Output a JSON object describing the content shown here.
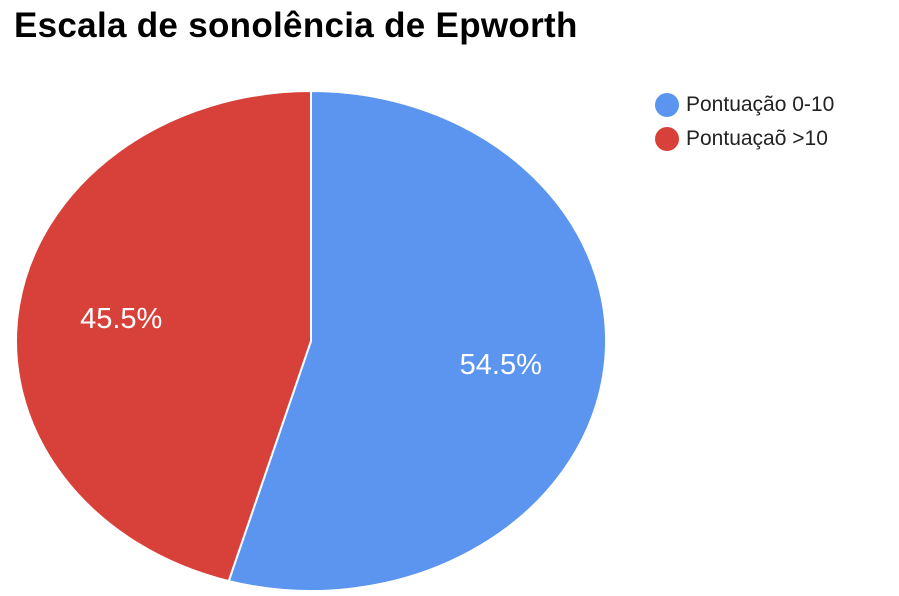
{
  "chart_data": {
    "type": "pie",
    "title": "Escala de sonolência de Epworth",
    "slices": [
      {
        "name": "Pontuação 0-10",
        "value": 54.5,
        "label": "54.5%",
        "color": "#5b95f0"
      },
      {
        "name": "Pontuaçaõ >10",
        "value": 45.5,
        "label": "45.5%",
        "color": "#d8413a"
      }
    ],
    "start_angle_deg": 0,
    "direction": "clockwise",
    "legend_position": "right"
  }
}
